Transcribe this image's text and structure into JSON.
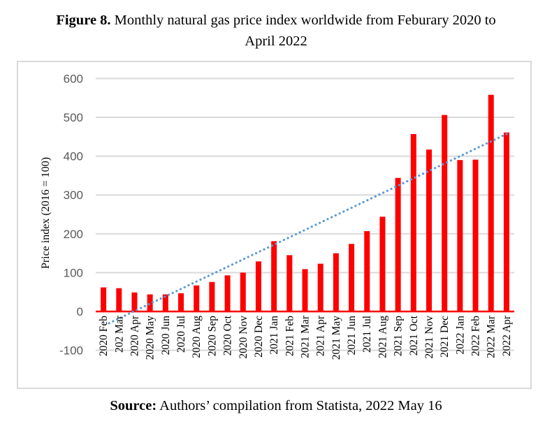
{
  "figure": {
    "label": "Figure 8.",
    "title_line1": "Monthly natural gas price index worldwide from Feburary 2020 to",
    "title_line2": "April 2022"
  },
  "source": {
    "label": "Source:",
    "text": "Authors’ compilation from Statista, 2022 May 16"
  },
  "colors": {
    "bar": "#ff0000",
    "trendline": "#5b9bd5",
    "grid": "#d9d9d9",
    "axis": "#ff0000"
  },
  "chart_data": {
    "type": "bar",
    "title": "Monthly natural gas price index worldwide from Feburary 2020 to April 2022",
    "xlabel": "",
    "ylabel": "Price index (2016 = 100)",
    "ylim": [
      -100,
      600
    ],
    "yticks": [
      -100,
      0,
      100,
      200,
      300,
      400,
      500,
      600
    ],
    "ytick_labels": [
      "-100",
      "0",
      "100",
      "200",
      "300",
      "400",
      "500",
      "600"
    ],
    "grid": true,
    "legend": "none",
    "categories": [
      "2020 Feb",
      "202 Mar",
      "2020 Apr",
      "2020 May",
      "2020 Jun",
      "2020 Jul",
      "2020 Aug",
      "2020 Sep",
      "2020 Oct",
      "2020 Nov",
      "2020 Dec",
      "2021 Jan",
      "2021 Feb",
      "2021 Mar",
      "2021 Apr",
      "2021 May",
      "2021 Jun",
      "2021 Jul",
      "2021 Aug",
      "2021 Sep",
      "2021 Oct",
      "2021 Nov",
      "2021 Dec",
      "2022 Jan",
      "2022 Feb",
      "2022 Mar",
      "2022 Apr"
    ],
    "series": [
      {
        "name": "Price index",
        "type": "bar",
        "values": [
          62,
          60,
          49,
          44,
          44,
          47,
          67,
          76,
          93,
          100,
          129,
          181,
          145,
          109,
          123,
          150,
          174,
          207,
          244,
          344,
          457,
          417,
          506,
          390,
          391,
          558,
          461
        ]
      },
      {
        "name": "Linear trend",
        "type": "line",
        "style": "dotted",
        "start": -37,
        "end": 457
      }
    ]
  }
}
